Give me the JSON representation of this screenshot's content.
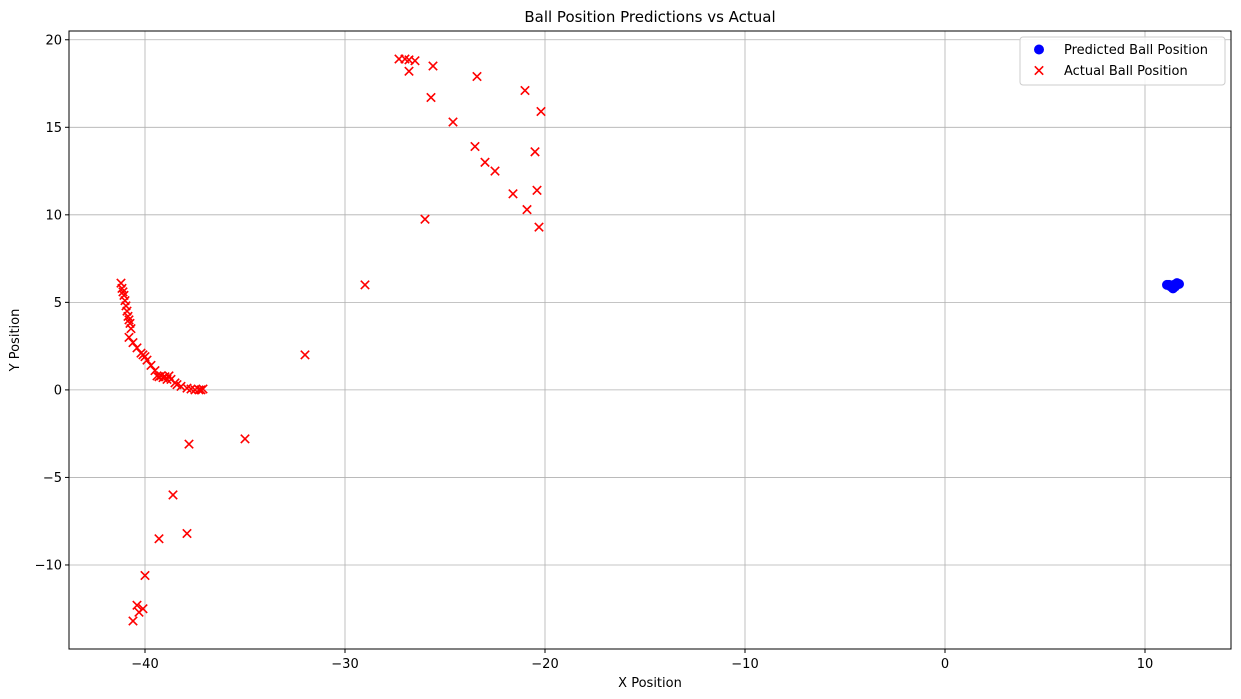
{
  "chart_data": {
    "type": "scatter",
    "title": "Ball Position Predictions vs Actual",
    "xlabel": "X Position",
    "ylabel": "Y Position",
    "xlim": [
      -43.8,
      14.3
    ],
    "ylim": [
      -14.8,
      20.5
    ],
    "x_ticks": [
      -40,
      -30,
      -20,
      -10,
      0,
      10
    ],
    "x_tick_labels": [
      "−40",
      "−30",
      "−20",
      "−10",
      "0",
      "10"
    ],
    "y_ticks": [
      -10,
      -5,
      0,
      5,
      10,
      15,
      20
    ],
    "y_tick_labels": [
      "−10",
      "−5",
      "0",
      "5",
      "10",
      "15",
      "20"
    ],
    "grid": true,
    "legend_position": "top-right",
    "series": [
      {
        "name": "Predicted Ball Position",
        "marker": "circle",
        "color": "#0000ff",
        "points": [
          [
            11.1,
            6.0
          ],
          [
            11.2,
            6.0
          ],
          [
            11.3,
            5.9
          ],
          [
            11.4,
            5.8
          ],
          [
            11.45,
            6.0
          ],
          [
            11.5,
            5.9
          ],
          [
            11.55,
            6.0
          ],
          [
            11.6,
            6.1
          ],
          [
            11.7,
            6.05
          ],
          [
            11.35,
            5.95
          ]
        ]
      },
      {
        "name": "Actual Ball Position",
        "marker": "x",
        "color": "#ff0000",
        "points": [
          [
            -41.2,
            6.1
          ],
          [
            -41.15,
            5.8
          ],
          [
            -41.1,
            5.6
          ],
          [
            -41.05,
            5.4
          ],
          [
            -41.0,
            5.1
          ],
          [
            -40.95,
            4.8
          ],
          [
            -40.9,
            4.5
          ],
          [
            -40.85,
            4.2
          ],
          [
            -40.8,
            4.0
          ],
          [
            -40.75,
            3.8
          ],
          [
            -40.7,
            3.5
          ],
          [
            -40.8,
            3.0
          ],
          [
            -40.6,
            2.7
          ],
          [
            -40.4,
            2.4
          ],
          [
            -40.2,
            2.1
          ],
          [
            -40.0,
            1.9
          ],
          [
            -39.9,
            1.7
          ],
          [
            -39.7,
            1.4
          ],
          [
            -39.5,
            1.1
          ],
          [
            -39.4,
            0.8
          ],
          [
            -39.3,
            0.75
          ],
          [
            -39.2,
            0.8
          ],
          [
            -39.1,
            0.7
          ],
          [
            -39.0,
            0.75
          ],
          [
            -38.9,
            0.6
          ],
          [
            -38.8,
            0.8
          ],
          [
            -38.7,
            0.6
          ],
          [
            -38.5,
            0.4
          ],
          [
            -38.4,
            0.3
          ],
          [
            -38.2,
            0.2
          ],
          [
            -37.9,
            0.1
          ],
          [
            -37.7,
            0.05
          ],
          [
            -37.5,
            0.0
          ],
          [
            -37.3,
            0.0
          ],
          [
            -37.2,
            0.0
          ],
          [
            -37.1,
            0.05
          ],
          [
            -40.1,
            2.0
          ],
          [
            -37.8,
            -3.1
          ],
          [
            -35.0,
            -2.8
          ],
          [
            -32.0,
            2.0
          ],
          [
            -29.0,
            6.0
          ],
          [
            -38.6,
            -6.0
          ],
          [
            -37.9,
            -8.2
          ],
          [
            -39.3,
            -8.5
          ],
          [
            -40.0,
            -10.6
          ],
          [
            -40.4,
            -12.3
          ],
          [
            -40.1,
            -12.5
          ],
          [
            -40.3,
            -12.7
          ],
          [
            -40.6,
            -13.2
          ],
          [
            -27.3,
            18.9
          ],
          [
            -27.0,
            18.9
          ],
          [
            -26.8,
            18.85
          ],
          [
            -26.5,
            18.8
          ],
          [
            -25.6,
            18.5
          ],
          [
            -23.4,
            17.9
          ],
          [
            -21.0,
            17.1
          ],
          [
            -26.8,
            18.2
          ],
          [
            -25.7,
            16.7
          ],
          [
            -24.6,
            15.3
          ],
          [
            -20.2,
            15.9
          ],
          [
            -23.5,
            13.9
          ],
          [
            -23.0,
            13.0
          ],
          [
            -22.5,
            12.5
          ],
          [
            -20.5,
            13.6
          ],
          [
            -21.6,
            11.2
          ],
          [
            -20.4,
            11.4
          ],
          [
            -20.9,
            10.3
          ],
          [
            -26.0,
            9.75
          ],
          [
            -20.3,
            9.3
          ]
        ]
      }
    ]
  }
}
